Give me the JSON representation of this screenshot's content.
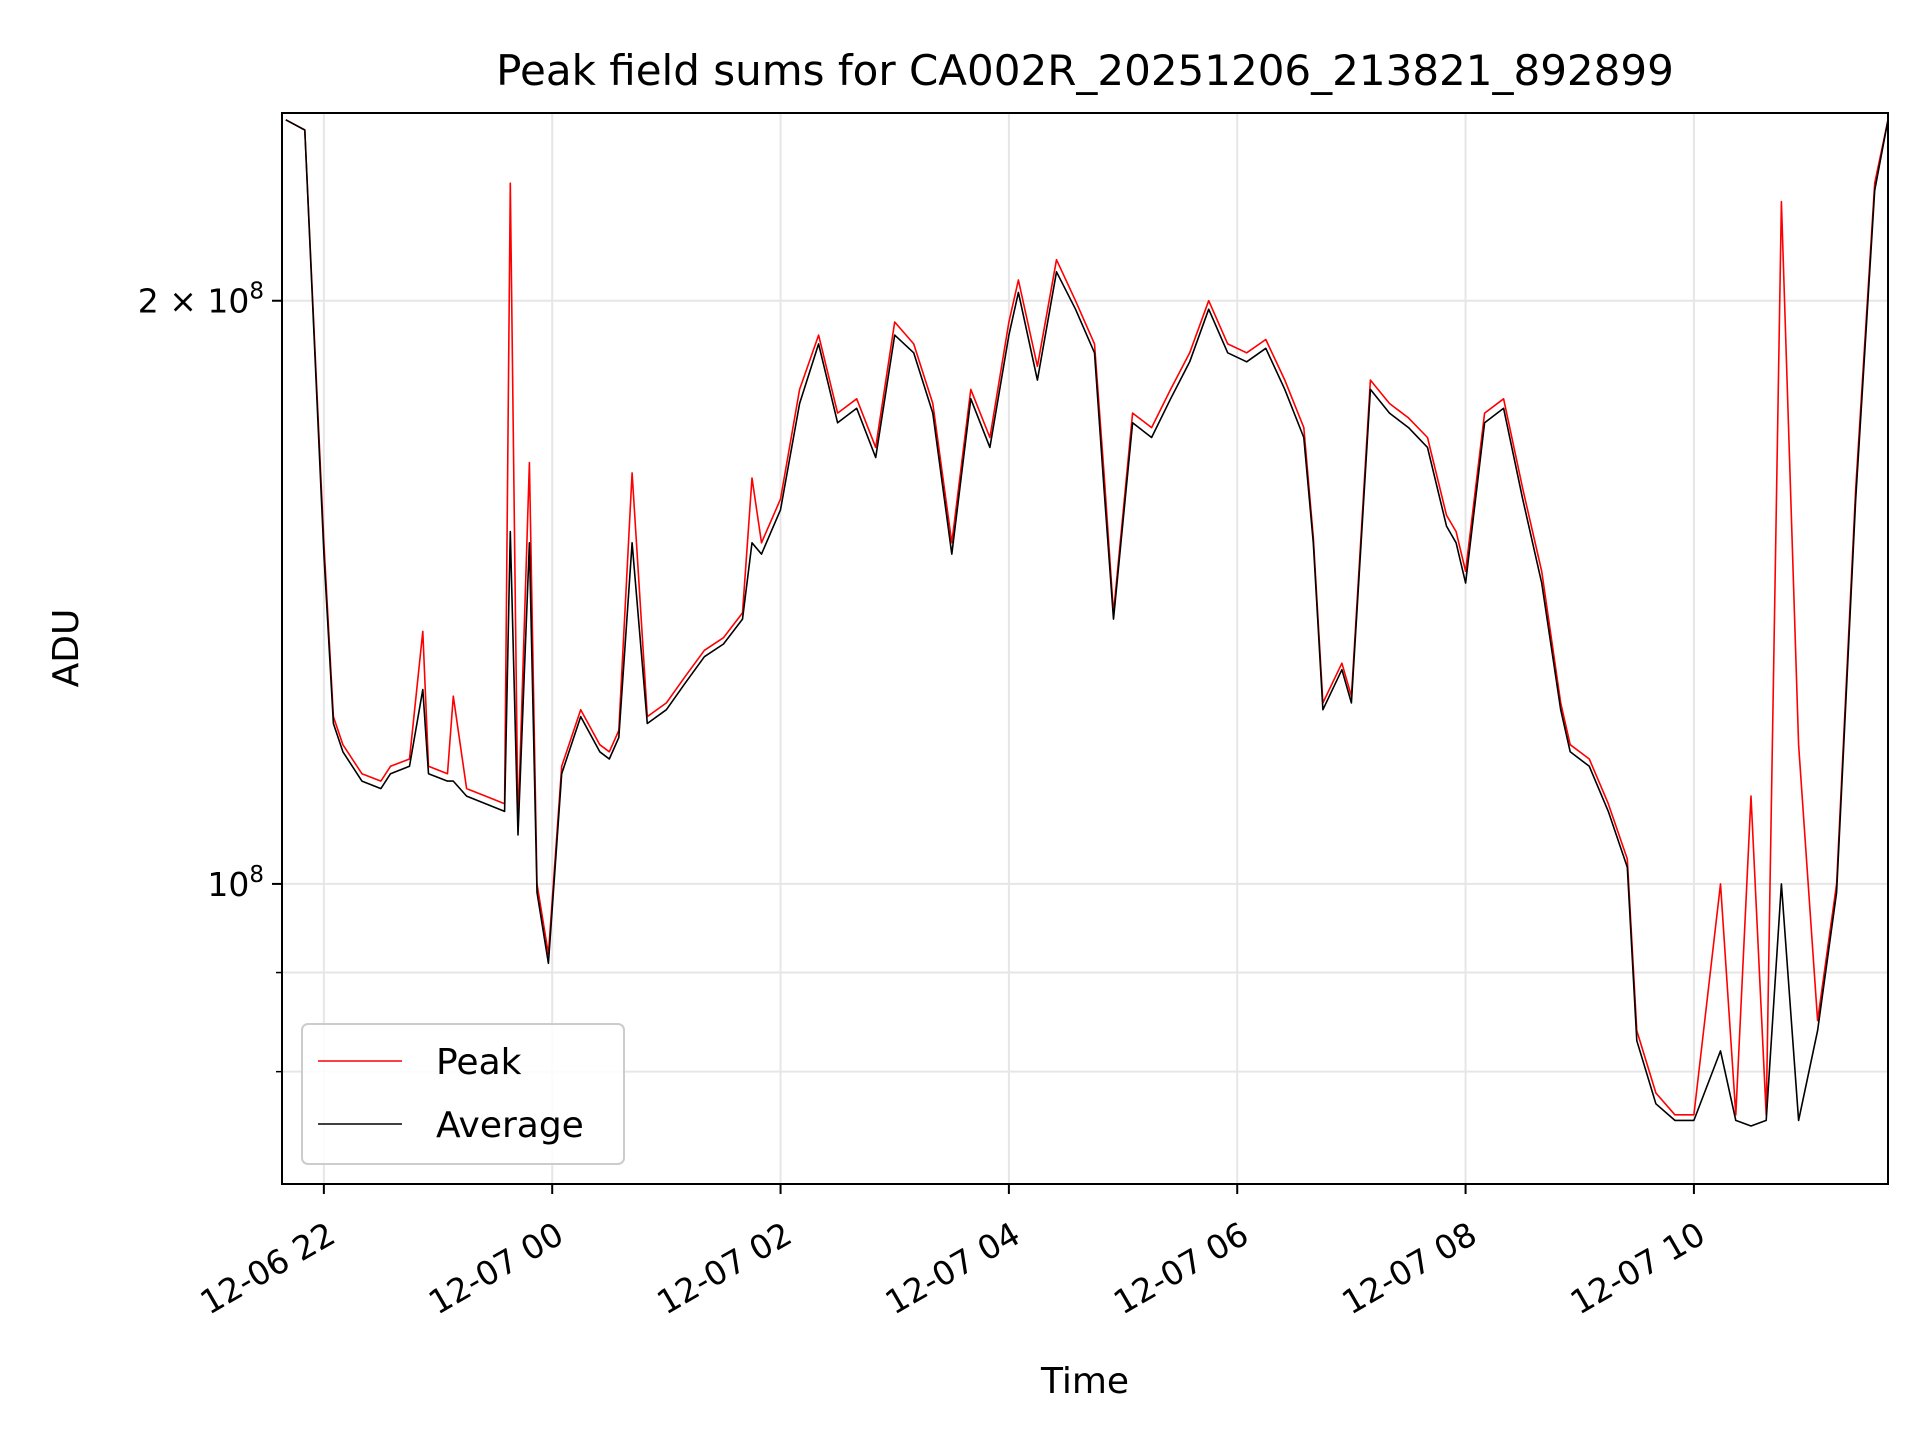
{
  "chart_data": {
    "type": "line",
    "title": "Peak field sums for CA002R_20251206_213821_892899",
    "xlabel": "Time",
    "ylabel": "ADU",
    "yscale": "log",
    "ylim": [
      70000000,
      250000000
    ],
    "xlim": [
      "2025-12-06 21:38",
      "2025-12-07 11:42"
    ],
    "grid": true,
    "legend_position": "lower-left",
    "x_ticks": [
      {
        "value": "2025-12-06 22:00",
        "label": "12-06 22"
      },
      {
        "value": "2025-12-07 00:00",
        "label": "12-07 00"
      },
      {
        "value": "2025-12-07 02:00",
        "label": "12-07 02"
      },
      {
        "value": "2025-12-07 04:00",
        "label": "12-07 04"
      },
      {
        "value": "2025-12-07 06:00",
        "label": "12-07 06"
      },
      {
        "value": "2025-12-07 08:00",
        "label": "12-07 08"
      },
      {
        "value": "2025-12-07 10:00",
        "label": "12-07 10"
      }
    ],
    "y_ticks_major": [
      {
        "value": 100000000,
        "base": "10",
        "exp": "8",
        "mantissa": ""
      },
      {
        "value": 200000000,
        "base": "10",
        "exp": "8",
        "mantissa": "2 × "
      }
    ],
    "y_ticks_minor": [
      80000000,
      90000000
    ],
    "series": [
      {
        "name": "Peak",
        "color": "#ff0000",
        "x": [
          "2025-12-06 21:40",
          "2025-12-06 21:50",
          "2025-12-06 22:00",
          "2025-12-06 22:05",
          "2025-12-06 22:10",
          "2025-12-06 22:20",
          "2025-12-06 22:30",
          "2025-12-06 22:35",
          "2025-12-06 22:45",
          "2025-12-06 22:52",
          "2025-12-06 22:55",
          "2025-12-06 23:05",
          "2025-12-06 23:08",
          "2025-12-06 23:15",
          "2025-12-06 23:25",
          "2025-12-06 23:35",
          "2025-12-06 23:38",
          "2025-12-06 23:42",
          "2025-12-06 23:48",
          "2025-12-06 23:52",
          "2025-12-06 23:58",
          "2025-12-07 00:05",
          "2025-12-07 00:15",
          "2025-12-07 00:25",
          "2025-12-07 00:30",
          "2025-12-07 00:35",
          "2025-12-07 00:42",
          "2025-12-07 00:50",
          "2025-12-07 01:00",
          "2025-12-07 01:10",
          "2025-12-07 01:20",
          "2025-12-07 01:30",
          "2025-12-07 01:40",
          "2025-12-07 01:45",
          "2025-12-07 01:50",
          "2025-12-07 02:00",
          "2025-12-07 02:10",
          "2025-12-07 02:20",
          "2025-12-07 02:30",
          "2025-12-07 02:40",
          "2025-12-07 02:50",
          "2025-12-07 03:00",
          "2025-12-07 03:10",
          "2025-12-07 03:20",
          "2025-12-07 03:30",
          "2025-12-07 03:40",
          "2025-12-07 03:50",
          "2025-12-07 04:00",
          "2025-12-07 04:05",
          "2025-12-07 04:15",
          "2025-12-07 04:25",
          "2025-12-07 04:35",
          "2025-12-07 04:45",
          "2025-12-07 04:50",
          "2025-12-07 04:55",
          "2025-12-07 05:05",
          "2025-12-07 05:15",
          "2025-12-07 05:25",
          "2025-12-07 05:35",
          "2025-12-07 05:45",
          "2025-12-07 05:55",
          "2025-12-07 06:05",
          "2025-12-07 06:15",
          "2025-12-07 06:25",
          "2025-12-07 06:35",
          "2025-12-07 06:40",
          "2025-12-07 06:45",
          "2025-12-07 06:55",
          "2025-12-07 07:00",
          "2025-12-07 07:10",
          "2025-12-07 07:20",
          "2025-12-07 07:30",
          "2025-12-07 07:40",
          "2025-12-07 07:50",
          "2025-12-07 07:55",
          "2025-12-07 08:00",
          "2025-12-07 08:10",
          "2025-12-07 08:20",
          "2025-12-07 08:30",
          "2025-12-07 08:40",
          "2025-12-07 08:50",
          "2025-12-07 08:55",
          "2025-12-07 09:05",
          "2025-12-07 09:15",
          "2025-12-07 09:25",
          "2025-12-07 09:30",
          "2025-12-07 09:40",
          "2025-12-07 09:50",
          "2025-12-07 10:00",
          "2025-12-07 10:14",
          "2025-12-07 10:22",
          "2025-12-07 10:30",
          "2025-12-07 10:38",
          "2025-12-07 10:46",
          "2025-12-07 10:55",
          "2025-12-07 11:05",
          "2025-12-07 11:15",
          "2025-12-07 11:25",
          "2025-12-07 11:35",
          "2025-12-07 11:42"
        ],
        "values": [
          248000000,
          245000000,
          150000000,
          122000000,
          118000000,
          114000000,
          113000000,
          115000000,
          116000000,
          135000000,
          115000000,
          114000000,
          125000000,
          112000000,
          111000000,
          110000000,
          230000000,
          107000000,
          165000000,
          100000000,
          92000000,
          115000000,
          123000000,
          118000000,
          117000000,
          120000000,
          163000000,
          122000000,
          124000000,
          128000000,
          132000000,
          134000000,
          138000000,
          162000000,
          150000000,
          158000000,
          180000000,
          192000000,
          175000000,
          178000000,
          168000000,
          195000000,
          190000000,
          177000000,
          150000000,
          180000000,
          170000000,
          195000000,
          205000000,
          185000000,
          210000000,
          200000000,
          190000000,
          163000000,
          138000000,
          175000000,
          172000000,
          180000000,
          188000000,
          200000000,
          190000000,
          188000000,
          191000000,
          182000000,
          172000000,
          151000000,
          124000000,
          130000000,
          125000000,
          182000000,
          177000000,
          174000000,
          170000000,
          155000000,
          152000000,
          145000000,
          175000000,
          178000000,
          160000000,
          145000000,
          124000000,
          118000000,
          116000000,
          110000000,
          103000000,
          84000000,
          78000000,
          76000000,
          76000000,
          100000000,
          76000000,
          111000000,
          76000000,
          225000000,
          118000000,
          85000000,
          100000000,
          160000000,
          230000000,
          248000000
        ]
      },
      {
        "name": "Average",
        "color": "#000000",
        "x": [
          "2025-12-06 21:40",
          "2025-12-06 21:50",
          "2025-12-06 22:00",
          "2025-12-06 22:05",
          "2025-12-06 22:10",
          "2025-12-06 22:20",
          "2025-12-06 22:30",
          "2025-12-06 22:35",
          "2025-12-06 22:45",
          "2025-12-06 22:52",
          "2025-12-06 22:55",
          "2025-12-06 23:05",
          "2025-12-06 23:08",
          "2025-12-06 23:15",
          "2025-12-06 23:25",
          "2025-12-06 23:35",
          "2025-12-06 23:38",
          "2025-12-06 23:42",
          "2025-12-06 23:48",
          "2025-12-06 23:52",
          "2025-12-06 23:58",
          "2025-12-07 00:05",
          "2025-12-07 00:15",
          "2025-12-07 00:25",
          "2025-12-07 00:30",
          "2025-12-07 00:35",
          "2025-12-07 00:42",
          "2025-12-07 00:50",
          "2025-12-07 01:00",
          "2025-12-07 01:10",
          "2025-12-07 01:20",
          "2025-12-07 01:30",
          "2025-12-07 01:40",
          "2025-12-07 01:45",
          "2025-12-07 01:50",
          "2025-12-07 02:00",
          "2025-12-07 02:10",
          "2025-12-07 02:20",
          "2025-12-07 02:30",
          "2025-12-07 02:40",
          "2025-12-07 02:50",
          "2025-12-07 03:00",
          "2025-12-07 03:10",
          "2025-12-07 03:20",
          "2025-12-07 03:30",
          "2025-12-07 03:40",
          "2025-12-07 03:50",
          "2025-12-07 04:00",
          "2025-12-07 04:05",
          "2025-12-07 04:15",
          "2025-12-07 04:25",
          "2025-12-07 04:35",
          "2025-12-07 04:45",
          "2025-12-07 04:50",
          "2025-12-07 04:55",
          "2025-12-07 05:05",
          "2025-12-07 05:15",
          "2025-12-07 05:25",
          "2025-12-07 05:35",
          "2025-12-07 05:45",
          "2025-12-07 05:55",
          "2025-12-07 06:05",
          "2025-12-07 06:15",
          "2025-12-07 06:25",
          "2025-12-07 06:35",
          "2025-12-07 06:40",
          "2025-12-07 06:45",
          "2025-12-07 06:55",
          "2025-12-07 07:00",
          "2025-12-07 07:10",
          "2025-12-07 07:20",
          "2025-12-07 07:30",
          "2025-12-07 07:40",
          "2025-12-07 07:50",
          "2025-12-07 07:55",
          "2025-12-07 08:00",
          "2025-12-07 08:10",
          "2025-12-07 08:20",
          "2025-12-07 08:30",
          "2025-12-07 08:40",
          "2025-12-07 08:50",
          "2025-12-07 08:55",
          "2025-12-07 09:05",
          "2025-12-07 09:15",
          "2025-12-07 09:25",
          "2025-12-07 09:30",
          "2025-12-07 09:40",
          "2025-12-07 09:50",
          "2025-12-07 10:00",
          "2025-12-07 10:14",
          "2025-12-07 10:22",
          "2025-12-07 10:30",
          "2025-12-07 10:38",
          "2025-12-07 10:46",
          "2025-12-07 10:55",
          "2025-12-07 11:05",
          "2025-12-07 11:15",
          "2025-12-07 11:25",
          "2025-12-07 11:35",
          "2025-12-07 11:42"
        ],
        "values": [
          248000000,
          245000000,
          148000000,
          121000000,
          117000000,
          113000000,
          112000000,
          114000000,
          115000000,
          126000000,
          114000000,
          113000000,
          113000000,
          111000000,
          110000000,
          109000000,
          152000000,
          106000000,
          150000000,
          99000000,
          91000000,
          114000000,
          122000000,
          117000000,
          116000000,
          119000000,
          150000000,
          121000000,
          123000000,
          127000000,
          131000000,
          133000000,
          137000000,
          150000000,
          148000000,
          156000000,
          177000000,
          190000000,
          173000000,
          176000000,
          166000000,
          192000000,
          188000000,
          175000000,
          148000000,
          178000000,
          168000000,
          192000000,
          202000000,
          182000000,
          207000000,
          198000000,
          188000000,
          160000000,
          137000000,
          173000000,
          170000000,
          178000000,
          186000000,
          198000000,
          188000000,
          186000000,
          189000000,
          180000000,
          170000000,
          150000000,
          123000000,
          129000000,
          124000000,
          180000000,
          175000000,
          172000000,
          168000000,
          153000000,
          150000000,
          143000000,
          173000000,
          176000000,
          158000000,
          143000000,
          123000000,
          117000000,
          115000000,
          109000000,
          102000000,
          83000000,
          77000000,
          75500000,
          75500000,
          82000000,
          75500000,
          75000000,
          75500000,
          100000000,
          75500000,
          84000000,
          99000000,
          158000000,
          228000000,
          248000000
        ]
      }
    ]
  },
  "legend": {
    "items": [
      {
        "label": "Peak",
        "color": "#ff0000"
      },
      {
        "label": "Average",
        "color": "#000000"
      }
    ]
  }
}
